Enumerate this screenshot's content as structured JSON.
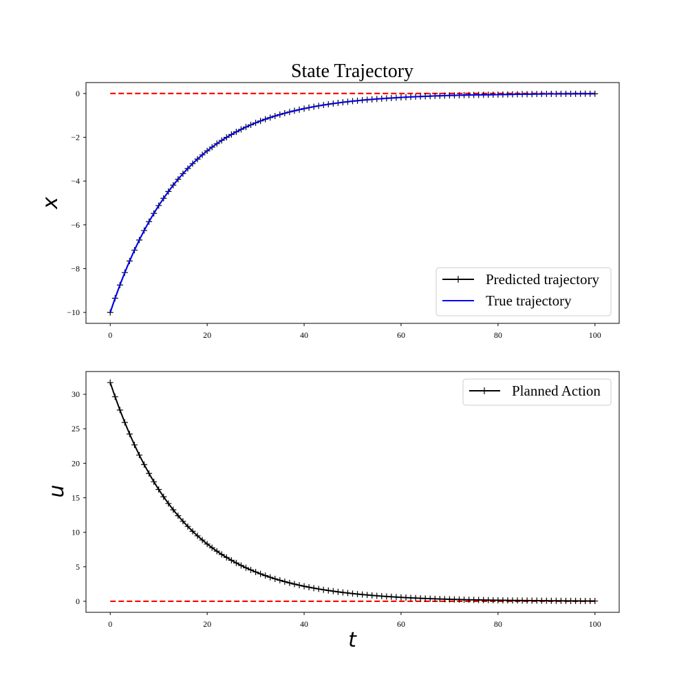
{
  "chart_data": [
    {
      "type": "line",
      "title": "State Trajectory",
      "xlabel": "",
      "ylabel": "x",
      "xlim": [
        -5,
        105
      ],
      "ylim": [
        -10.5,
        0.5
      ],
      "xticks": [
        0,
        20,
        40,
        60,
        80,
        100
      ],
      "yticks": [
        0,
        -2,
        -4,
        -6,
        -8,
        -10
      ],
      "x_tick_labels": [
        "0",
        "20",
        "40",
        "60",
        "80",
        "100"
      ],
      "y_tick_labels": [
        "0",
        "−2",
        "−4",
        "−6",
        "−8",
        "−10"
      ],
      "grid": false,
      "legend_position": "lower-right",
      "x": [
        0,
        10,
        20,
        30,
        40,
        50,
        60,
        70,
        80,
        90,
        100
      ],
      "series": [
        {
          "name": "Predicted trajectory",
          "color": "#000000",
          "marker": "+",
          "values": [
            -10,
            -5.12,
            -2.62,
            -1.34,
            -0.69,
            -0.35,
            -0.18,
            -0.09,
            -0.05,
            -0.02,
            -0.01
          ]
        },
        {
          "name": "True trajectory",
          "color": "#0000ff",
          "marker": "none",
          "values": [
            -10,
            -5.12,
            -2.62,
            -1.34,
            -0.69,
            -0.35,
            -0.18,
            -0.09,
            -0.05,
            -0.02,
            -0.01
          ]
        }
      ],
      "reference_lines": [
        {
          "y": 0,
          "color": "#ff0000",
          "style": "dashed"
        }
      ]
    },
    {
      "type": "line",
      "title": "",
      "xlabel": "t",
      "ylabel": "u",
      "xlim": [
        -5,
        105
      ],
      "ylim": [
        -1.6,
        33.3
      ],
      "xticks": [
        0,
        20,
        40,
        60,
        80,
        100
      ],
      "yticks": [
        0,
        5,
        10,
        15,
        20,
        25,
        30
      ],
      "x_tick_labels": [
        "0",
        "20",
        "40",
        "60",
        "80",
        "100"
      ],
      "y_tick_labels": [
        "0",
        "5",
        "10",
        "15",
        "20",
        "25",
        "30"
      ],
      "grid": false,
      "legend_position": "upper-right",
      "x": [
        0,
        10,
        20,
        30,
        40,
        50,
        60,
        70,
        80,
        90,
        100
      ],
      "series": [
        {
          "name": "Planned Action",
          "color": "#000000",
          "marker": "+",
          "values": [
            31.7,
            16.2,
            8.3,
            4.25,
            2.18,
            1.12,
            0.57,
            0.29,
            0.15,
            0.08,
            0.04
          ]
        }
      ],
      "reference_lines": [
        {
          "y": 0,
          "color": "#ff0000",
          "style": "dashed"
        }
      ]
    }
  ]
}
